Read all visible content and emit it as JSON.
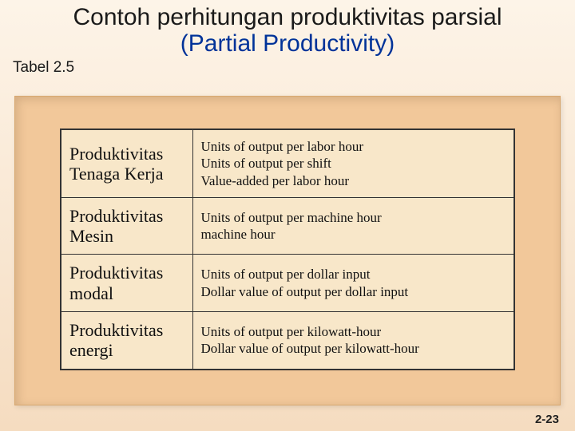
{
  "title": {
    "main": "Contoh perhitungan produktivitas parsial",
    "sub": "(Partial Productivity)"
  },
  "table_label": "Tabel 2.5",
  "table": {
    "rows": [
      {
        "category": "Produktivitas Tenaga Kerja",
        "desc": "Units of output per labor hour\nUnits of output per shift\nValue-added per labor hour"
      },
      {
        "category": "Produktivitas Mesin",
        "desc": "Units of output per machine hour\nmachine hour"
      },
      {
        "category": "Produktivitas modal",
        "desc": "Units of output per dollar input\nDollar value of output per dollar input"
      },
      {
        "category": "Produktivitas energi",
        "desc": "Units of output per kilowatt-hour\nDollar value of output per kilowatt-hour"
      }
    ]
  },
  "slide_number": "2-23",
  "styling": {
    "bg_gradient_top": "#fdf4e8",
    "bg_gradient_bottom": "#f5dcc0",
    "panel_bg": "#f2c89a",
    "table_bg": "#f8e7c9",
    "title_sub_color": "#003399",
    "title_fontsize_pt": 22,
    "body_fontsize_pt": 13,
    "cat_fontsize_pt": 16
  }
}
